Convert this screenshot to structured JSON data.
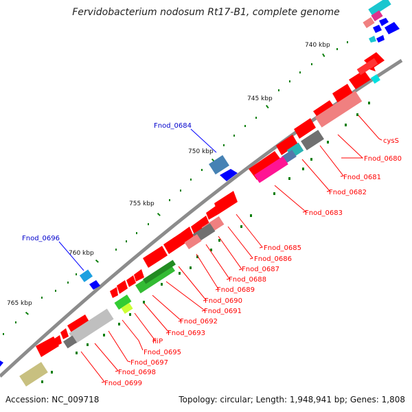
{
  "title": "Fervidobacterium nodosum Rt17-B1, complete genome",
  "footer": {
    "accession": "Accession: NC_009718",
    "summary": "Topology: circular; Length: 1,948,941 bp; Genes: 1,808"
  },
  "ticks": [
    "740 kbp",
    "745 kbp",
    "750 kbp",
    "755 kbp",
    "760 kbp",
    "765 kbp"
  ],
  "genes_minus_strand": [
    {
      "name": "cysS",
      "color": "#ff0000"
    },
    {
      "name": "Fnod_0680",
      "color": "#ff0000"
    },
    {
      "name": "Fnod_0681",
      "color": "#ff0000"
    },
    {
      "name": "Fnod_0682",
      "color": "#ff0000"
    },
    {
      "name": "Fnod_0683",
      "color": "#ff0000"
    },
    {
      "name": "Fnod_0685",
      "color": "#ff0000"
    },
    {
      "name": "Fnod_0686",
      "color": "#ff0000"
    },
    {
      "name": "Fnod_0687",
      "color": "#ff0000"
    },
    {
      "name": "Fnod_0688",
      "color": "#ff0000"
    },
    {
      "name": "Fnod_0689",
      "color": "#ff0000"
    },
    {
      "name": "Fnod_0690",
      "color": "#ff0000"
    },
    {
      "name": "Fnod_0691",
      "color": "#ff0000"
    },
    {
      "name": "Fnod_0692",
      "color": "#ff0000"
    },
    {
      "name": "Fnod_0693",
      "color": "#ff0000"
    },
    {
      "name": "fliP",
      "color": "#ff0000"
    },
    {
      "name": "Fnod_0695",
      "color": "#ff0000"
    },
    {
      "name": "Fnod_0697",
      "color": "#ff0000"
    },
    {
      "name": "Fnod_0698",
      "color": "#ff0000"
    },
    {
      "name": "Fnod_0699",
      "color": "#ff0000"
    }
  ],
  "genes_plus_strand": [
    {
      "name": "Fnod_0684",
      "color": "#0000ff"
    },
    {
      "name": "Fnod_0696",
      "color": "#0000ff"
    }
  ]
}
